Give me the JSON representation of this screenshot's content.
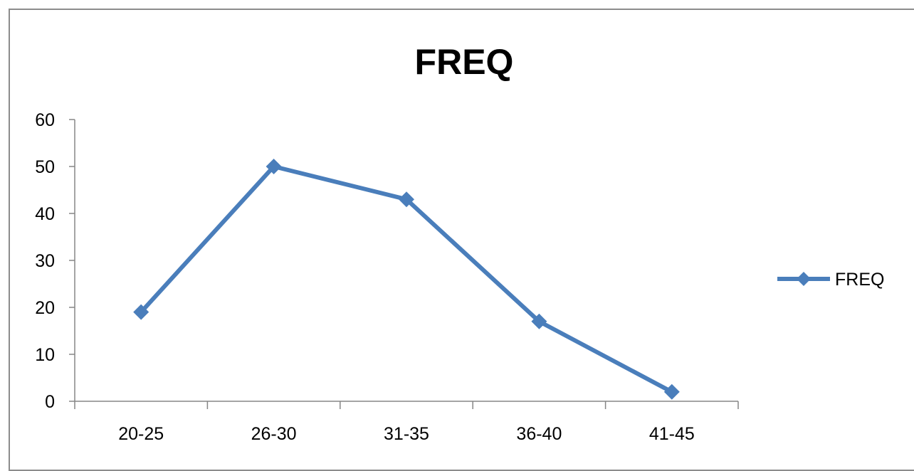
{
  "chart_data": {
    "type": "line",
    "title": "FREQ",
    "xlabel": "",
    "ylabel": "",
    "categories": [
      "20-25",
      "26-30",
      "31-35",
      "36-40",
      "41-45"
    ],
    "series": [
      {
        "name": "FREQ",
        "values": [
          19,
          50,
          43,
          17,
          2
        ],
        "color": "#4a7ebb",
        "marker": "diamond"
      }
    ],
    "ylim": [
      0,
      60
    ],
    "yticks": [
      0,
      10,
      20,
      30,
      40,
      50,
      60
    ],
    "grid": false,
    "legend": "right"
  }
}
